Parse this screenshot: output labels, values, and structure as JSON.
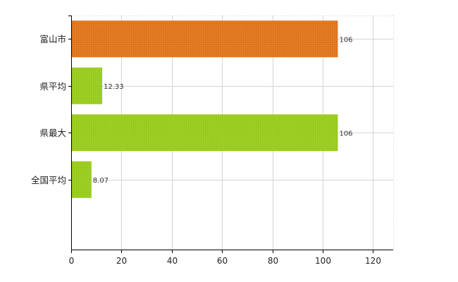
{
  "chart_data": {
    "type": "bar",
    "orientation": "horizontal",
    "categories": [
      "富山市",
      "県平均",
      "県最大",
      "全国平均"
    ],
    "values": [
      106,
      12.33,
      106,
      8.07
    ],
    "data_labels": [
      "106",
      "12.33",
      "106",
      "8.07"
    ],
    "bar_colors": [
      "#e07820",
      "#9acd1e",
      "#9acd1e",
      "#9acd1e"
    ],
    "xlim": [
      0,
      128
    ],
    "x_ticks": [
      0,
      20,
      40,
      60,
      80,
      100,
      120
    ],
    "x_tick_labels": [
      "0",
      "20",
      "40",
      "60",
      "80",
      "100",
      "120"
    ],
    "grid": true,
    "title": "",
    "xlabel": "",
    "ylabel": ""
  }
}
